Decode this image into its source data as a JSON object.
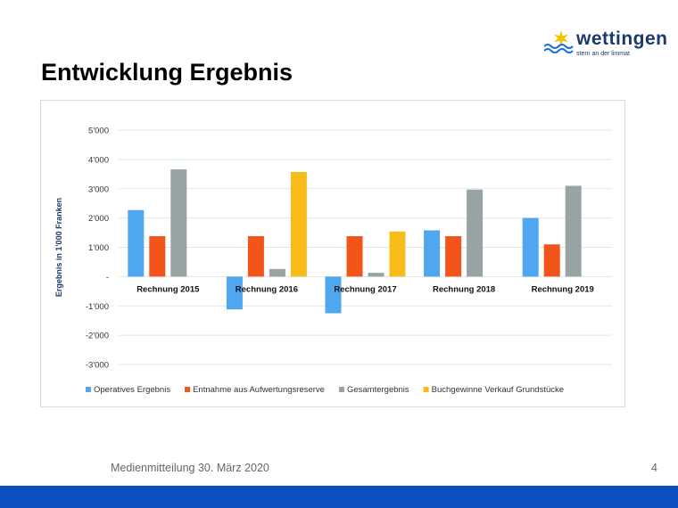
{
  "logo": {
    "name": "wettingen",
    "tagline": "stern an der limmat",
    "colors": {
      "star": "#f5c400",
      "wave": "#1a6fd6",
      "text": "#1a3a6e"
    }
  },
  "slide": {
    "title": "Entwicklung Ergebnis",
    "footer": "Medienmitteilung 30. März 2020",
    "page_number": "4"
  },
  "chart_data": {
    "type": "bar",
    "title": "",
    "xlabel": "",
    "ylabel": "Ergebnis in 1'000 Franken",
    "ylim": [
      -3000,
      5000
    ],
    "yticks": [
      5000,
      4000,
      3000,
      2000,
      1000,
      0,
      -1000,
      -2000,
      -3000
    ],
    "ytick_labels": [
      "5'000",
      "4'000",
      "3'000",
      "2'000",
      "1'000",
      "-",
      "-1'000",
      "-2'000",
      "-3'000"
    ],
    "grid": true,
    "legend_position": "bottom",
    "categories": [
      "Rechnung 2015",
      "Rechnung 2016",
      "Rechnung 2017",
      "Rechnung 2018",
      "Rechnung 2019"
    ],
    "series": [
      {
        "name": "Operatives Ergebnis",
        "color": "#4ea7ef",
        "values": [
          2270,
          -1120,
          -1250,
          1580,
          2000
        ]
      },
      {
        "name": "Entnahme aus Aufwertungsreserve",
        "color": "#f3541a",
        "values": [
          1380,
          1380,
          1380,
          1380,
          1100
        ]
      },
      {
        "name": "Gesamtergebnis",
        "color": "#98a3a3",
        "values": [
          3660,
          260,
          130,
          2970,
          3100
        ]
      },
      {
        "name": "Buchgewinne Verkauf Grundstücke",
        "color": "#f8bc1a",
        "values": [
          0,
          3570,
          1540,
          0,
          0
        ]
      }
    ]
  }
}
